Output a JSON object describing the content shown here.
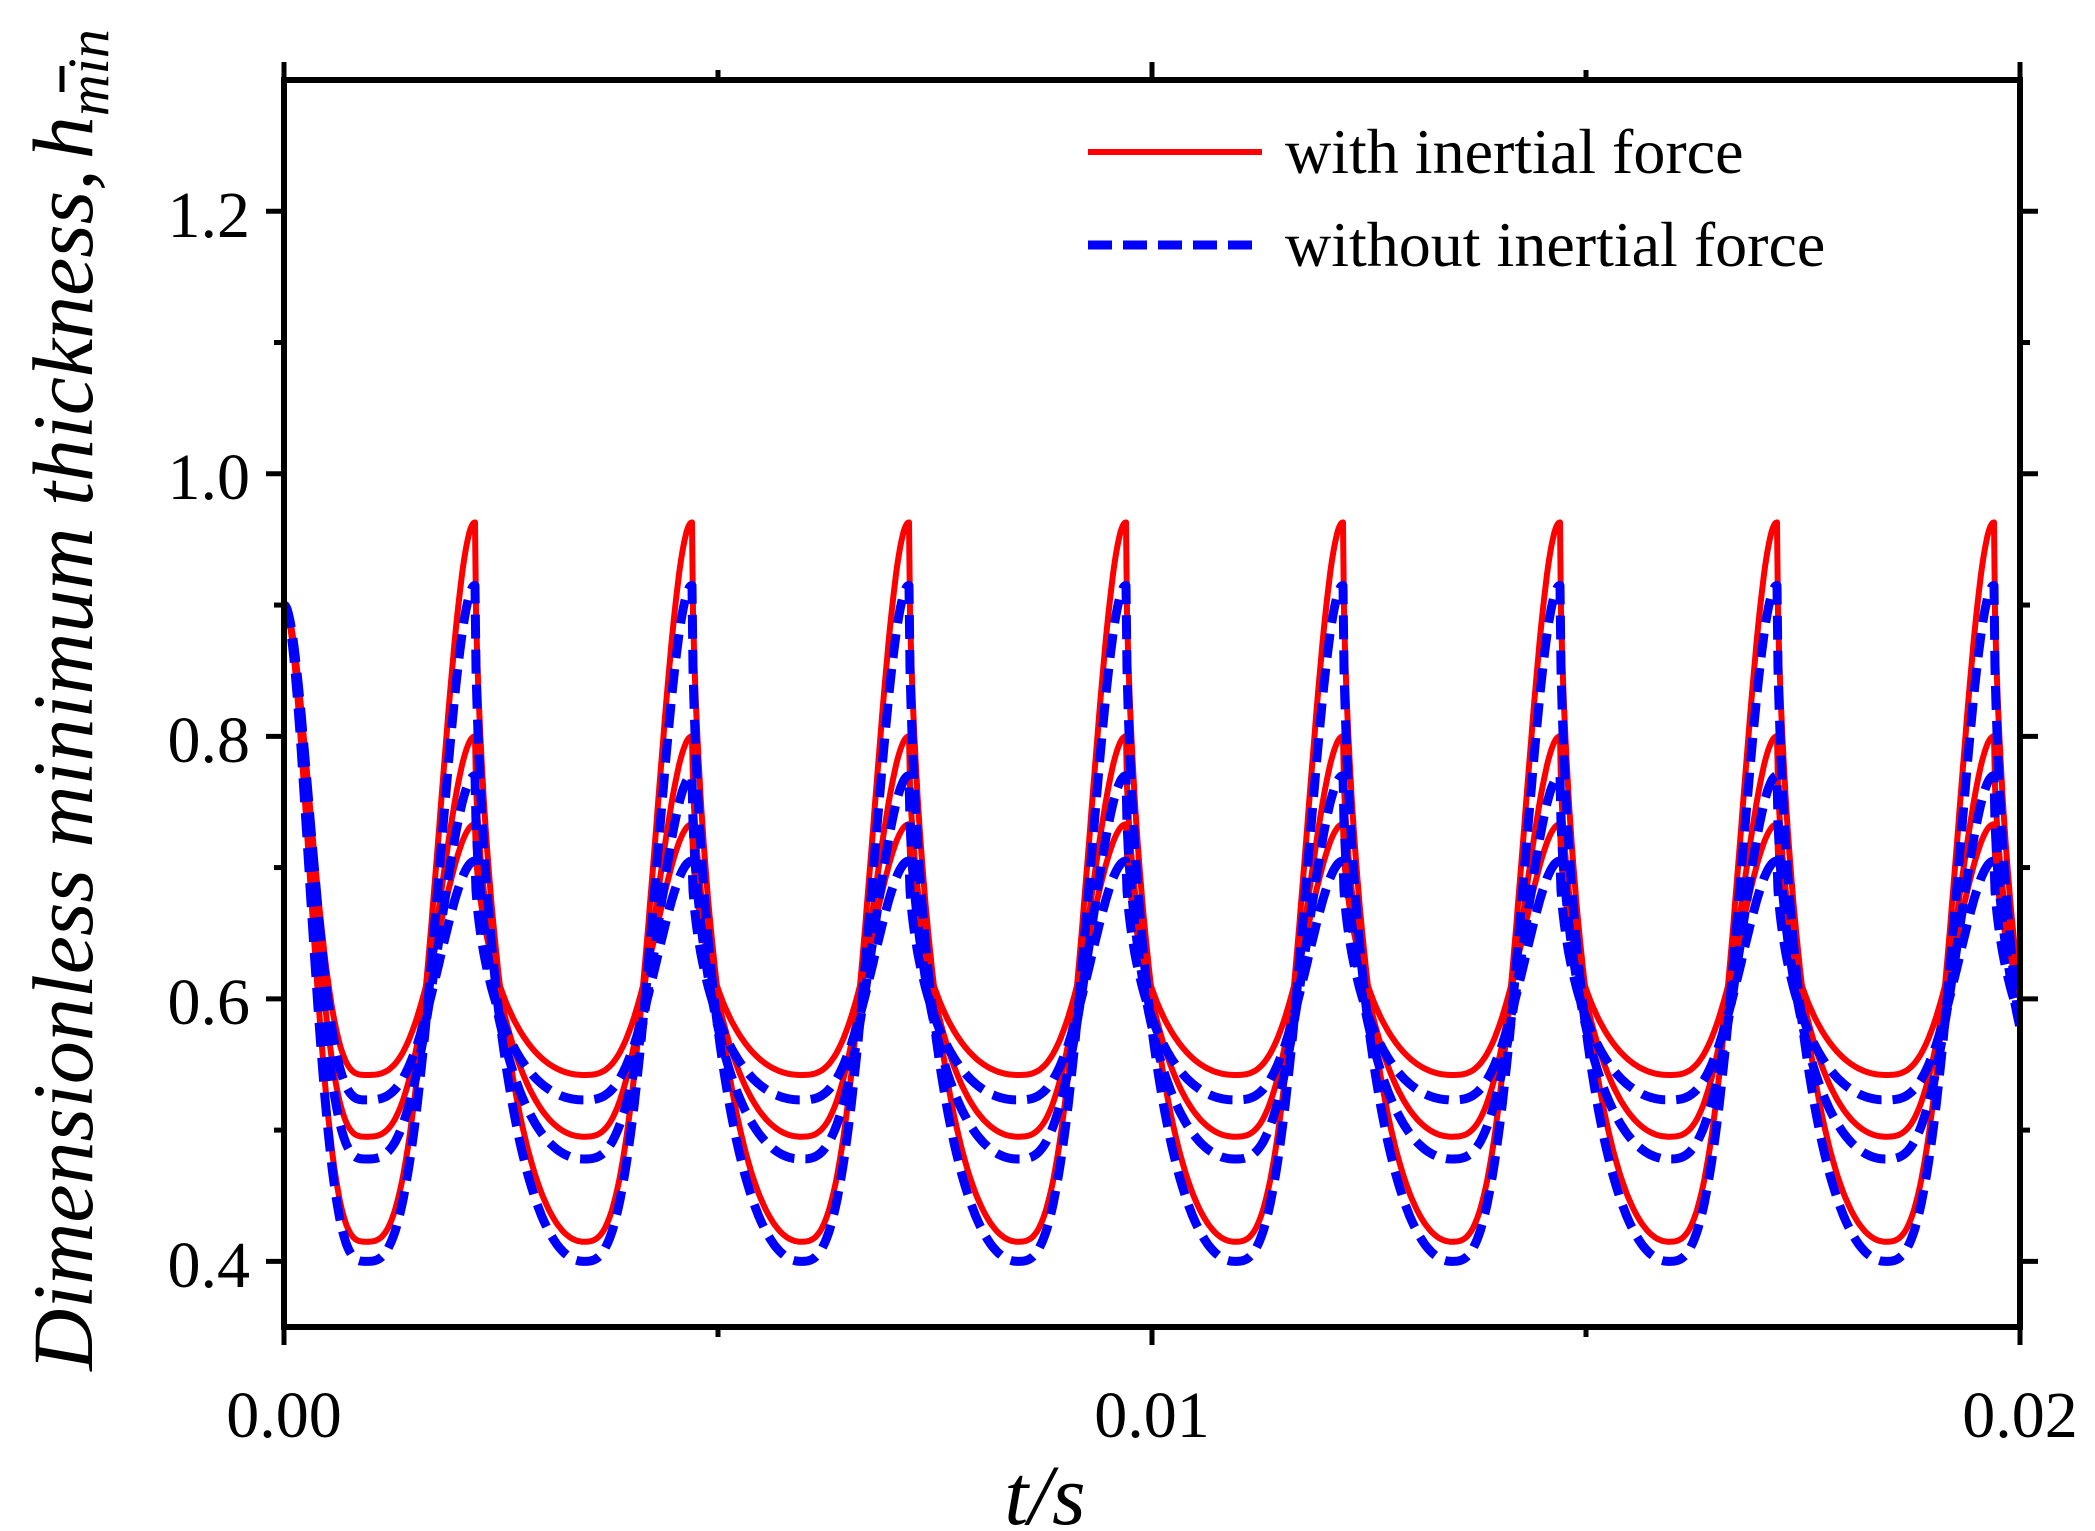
{
  "chart_data": {
    "type": "line",
    "title": "",
    "xlabel": "t/s",
    "ylabel": "Dimensionless minimum thickness,",
    "ylabel_symbol": "h",
    "ylabel_subscript": "min",
    "xlim": [
      0.0,
      0.02
    ],
    "ylim": [
      0.35,
      1.3
    ],
    "xticks": [
      0.0,
      0.01,
      0.02
    ],
    "xtick_labels": [
      "0.00",
      "0.01",
      "0.02"
    ],
    "xminor": [
      0.005,
      0.015
    ],
    "yticks": [
      0.4,
      0.6,
      0.8,
      1.0,
      1.2
    ],
    "ytick_labels": [
      "0.4",
      "0.6",
      "0.8",
      "1.0",
      "1.2"
    ],
    "yminor": [
      0.5,
      0.7,
      0.9,
      1.1
    ],
    "grid": false,
    "legend_position": "top-right",
    "period": 0.0025,
    "t_start": 0.0,
    "t_end": 0.02,
    "curve_model": "periodic sawtooth-like wave: minimum near t = 0.00095 + k*0.0025, sharp peak near t = 0.0022 + k*0.0025; first point starts at 0.9",
    "series": [
      {
        "name": "with inertial force",
        "style": "solid",
        "color": "#ff0000",
        "peak": 0.963,
        "trough": 0.415,
        "start": 0.9
      },
      {
        "name": "with inertial force",
        "style": "solid",
        "color": "#ff0000",
        "peak": 0.8,
        "trough": 0.495,
        "start": 0.9
      },
      {
        "name": "with inertial force",
        "style": "solid",
        "color": "#ff0000",
        "peak": 0.733,
        "trough": 0.542,
        "start": 0.9
      },
      {
        "name": "without inertial force",
        "style": "dashed",
        "color": "#0000ff",
        "peak": 0.915,
        "trough": 0.4,
        "start": 0.9
      },
      {
        "name": "without inertial force",
        "style": "dashed",
        "color": "#0000ff",
        "peak": 0.77,
        "trough": 0.478,
        "start": 0.9
      },
      {
        "name": "without inertial force",
        "style": "dashed",
        "color": "#0000ff",
        "peak": 0.705,
        "trough": 0.523,
        "start": 0.9
      }
    ],
    "legend": [
      {
        "label": "with inertial force",
        "style": "solid",
        "color": "#ff0000"
      },
      {
        "label": "without inertial force",
        "style": "dashed",
        "color": "#0000ff"
      }
    ]
  }
}
